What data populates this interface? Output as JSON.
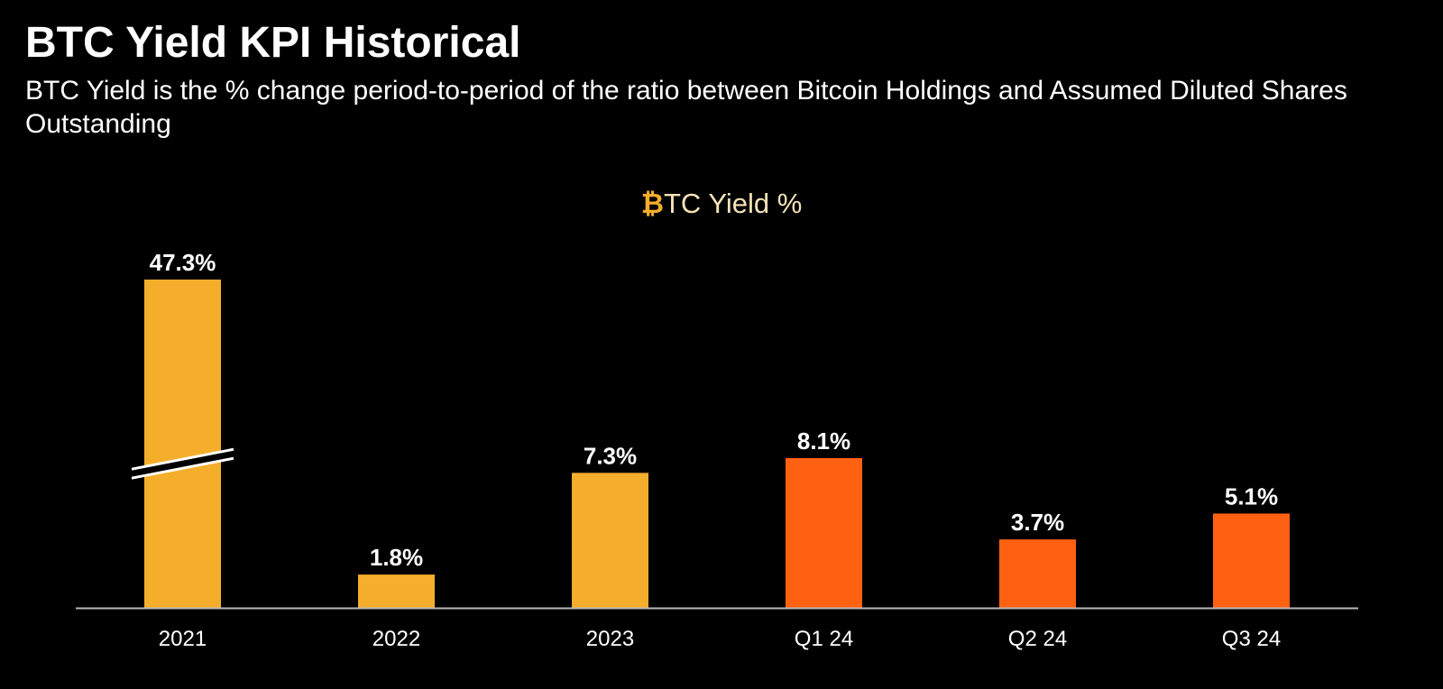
{
  "header": {
    "title": "BTC Yield KPI Historical",
    "subtitle": "BTC Yield is the % change period-to-period of the ratio between Bitcoin Holdings and Assumed Diluted Shares Outstanding"
  },
  "chart_data": {
    "type": "bar",
    "title_symbol": "₿",
    "title_text": "TC Yield %",
    "categories": [
      "2021",
      "2022",
      "2023",
      "Q1 24",
      "Q2 24",
      "Q3 24"
    ],
    "values": [
      47.3,
      1.8,
      7.3,
      8.1,
      3.7,
      5.1
    ],
    "data_labels": [
      "47.3%",
      "1.8%",
      "7.3%",
      "8.1%",
      "3.7%",
      "5.1%"
    ],
    "bar_colors": [
      "#f5ae2b",
      "#f5ae2b",
      "#f5ae2b",
      "#ff6112",
      "#ff6112",
      "#ff6112"
    ],
    "broken_axis_bar": "2021",
    "grid": false,
    "legend": "none",
    "xlabel": "",
    "ylabel": ""
  },
  "colors": {
    "background": "#000000",
    "annual_bar": "#f5ae2b",
    "quarterly_bar": "#ff6112",
    "text": "#ffffff",
    "chart_title": "#f5e3b8",
    "axis_line": "#b8b8b8"
  }
}
